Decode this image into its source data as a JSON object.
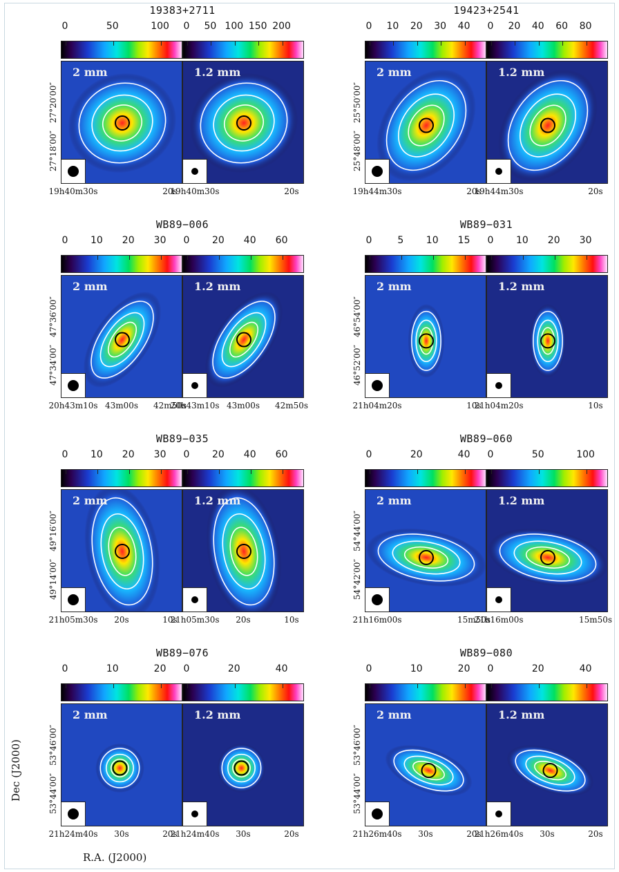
{
  "figure": {
    "ylabel": "Dec (J2000)",
    "xlabel": "R.A. (J2000)"
  },
  "groups": [
    {
      "name": "19383+2711",
      "left": {
        "band": "2 mm",
        "ticks": [
          "0",
          "50",
          "100"
        ]
      },
      "right": {
        "band": "1.2 mm",
        "ticks": [
          "0",
          "50",
          "100",
          "150",
          "200"
        ]
      },
      "dec": [
        "27°20′00″",
        "27°18′00″"
      ],
      "ra_left": [
        "19h40m30s",
        "20s"
      ],
      "ra_right": [
        "19h40m30s",
        "20s"
      ]
    },
    {
      "name": "19423+2541",
      "left": {
        "band": "2 mm",
        "ticks": [
          "0",
          "10",
          "20",
          "30",
          "40"
        ]
      },
      "right": {
        "band": "1.2 mm",
        "ticks": [
          "0",
          "20",
          "40",
          "60",
          "80"
        ]
      },
      "dec": [
        "25°50′00″",
        "25°48′00″"
      ],
      "ra_left": [
        "19h44m30s",
        "20s"
      ],
      "ra_right": [
        "19h44m30s",
        "20s"
      ]
    },
    {
      "name": "WB89−006",
      "left": {
        "band": "2 mm",
        "ticks": [
          "0",
          "10",
          "20",
          "30"
        ]
      },
      "right": {
        "band": "1.2 mm",
        "ticks": [
          "0",
          "20",
          "40",
          "60"
        ]
      },
      "dec": [
        "47°36′00″",
        "47°34′00″"
      ],
      "ra_left": [
        "20h43m10s",
        "43m00s",
        "42m50s"
      ],
      "ra_right": [
        "20h43m10s",
        "43m00s",
        "42m50s"
      ]
    },
    {
      "name": "WB89−031",
      "left": {
        "band": "2 mm",
        "ticks": [
          "0",
          "5",
          "10",
          "15"
        ]
      },
      "right": {
        "band": "1.2 mm",
        "ticks": [
          "0",
          "10",
          "20",
          "30"
        ]
      },
      "dec": [
        "46°54′00″",
        "46°52′00″"
      ],
      "ra_left": [
        "21h04m20s",
        "10s"
      ],
      "ra_right": [
        "21h04m20s",
        "10s"
      ]
    },
    {
      "name": "WB89−035",
      "left": {
        "band": "2 mm",
        "ticks": [
          "0",
          "10",
          "20",
          "30"
        ]
      },
      "right": {
        "band": "1.2 mm",
        "ticks": [
          "0",
          "20",
          "40",
          "60"
        ]
      },
      "dec": [
        "49°16′00″",
        "49°14′00″"
      ],
      "ra_left": [
        "21h05m30s",
        "20s",
        "10s"
      ],
      "ra_right": [
        "21h05m30s",
        "20s",
        "10s"
      ]
    },
    {
      "name": "WB89−060",
      "left": {
        "band": "2 mm",
        "ticks": [
          "0",
          "20",
          "40"
        ]
      },
      "right": {
        "band": "1.2 mm",
        "ticks": [
          "0",
          "50",
          "100"
        ]
      },
      "dec": [
        "54°44′00″",
        "54°42′00″"
      ],
      "ra_left": [
        "21h16m00s",
        "15m50s"
      ],
      "ra_right": [
        "21h16m00s",
        "15m50s"
      ]
    },
    {
      "name": "WB89−076",
      "left": {
        "band": "2 mm",
        "ticks": [
          "0",
          "10",
          "20"
        ]
      },
      "right": {
        "band": "1.2 mm",
        "ticks": [
          "0",
          "20",
          "40"
        ]
      },
      "dec": [
        "53°46′00″",
        "53°44′00″"
      ],
      "ra_left": [
        "21h24m40s",
        "30s",
        "20s"
      ],
      "ra_right": [
        "21h24m40s",
        "30s",
        "20s"
      ]
    },
    {
      "name": "WB89−080",
      "left": {
        "band": "2 mm",
        "ticks": [
          "0",
          "10",
          "20"
        ]
      },
      "right": {
        "band": "1.2 mm",
        "ticks": [
          "0",
          "20",
          "40"
        ]
      },
      "dec": [
        "53°46′00″",
        "53°44′00″"
      ],
      "ra_left": [
        "21h26m40s",
        "30s",
        "20s"
      ],
      "ra_right": [
        "21h26m40s",
        "30s",
        "20s"
      ]
    }
  ]
}
